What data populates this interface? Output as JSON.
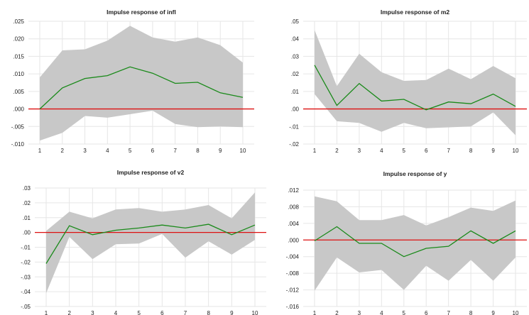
{
  "chart_data": [
    {
      "type": "area",
      "title": "Impulse response of infl",
      "x": [
        1,
        2,
        3,
        4,
        5,
        6,
        7,
        8,
        9,
        10
      ],
      "ylim": [
        -0.01,
        0.025
      ],
      "yticks": [
        -0.01,
        -0.005,
        0.0,
        0.005,
        0.01,
        0.015,
        0.02,
        0.025
      ],
      "ytick_labels": [
        "-.010",
        "-.005",
        ".000",
        ".005",
        ".010",
        ".015",
        ".020",
        ".025"
      ],
      "grid": true,
      "series": [
        {
          "role": "response",
          "values": [
            0.0,
            0.006,
            0.0087,
            0.0095,
            0.012,
            0.0102,
            0.0073,
            0.0076,
            0.0046,
            0.0033
          ]
        },
        {
          "role": "upper",
          "values": [
            0.009,
            0.0167,
            0.017,
            0.0195,
            0.0237,
            0.0204,
            0.0192,
            0.0204,
            0.0182,
            0.0132
          ]
        },
        {
          "role": "lower",
          "values": [
            -0.009,
            -0.0068,
            -0.002,
            -0.0025,
            -0.0015,
            -0.0005,
            -0.0043,
            -0.0052,
            -0.005,
            -0.0052
          ]
        }
      ],
      "colors": {
        "response": "#1a8a1a",
        "band": "#c8c8c8",
        "zero": "#dd1111"
      }
    },
    {
      "type": "area",
      "title": "Impulse response of m2",
      "x": [
        1,
        2,
        3,
        4,
        5,
        6,
        7,
        8,
        9,
        10
      ],
      "ylim": [
        -0.02,
        0.05
      ],
      "yticks": [
        -0.02,
        -0.01,
        0.0,
        0.01,
        0.02,
        0.03,
        0.04,
        0.05
      ],
      "ytick_labels": [
        "-.02",
        "-.01",
        ".00",
        ".01",
        ".02",
        ".03",
        ".04",
        ".05"
      ],
      "grid": true,
      "series": [
        {
          "role": "response",
          "values": [
            0.025,
            0.002,
            0.0145,
            0.0045,
            0.0055,
            -0.0005,
            0.004,
            0.003,
            0.0085,
            0.0015
          ]
        },
        {
          "role": "upper",
          "values": [
            0.045,
            0.013,
            0.0315,
            0.021,
            0.016,
            0.0165,
            0.023,
            0.017,
            0.0245,
            0.0175
          ]
        },
        {
          "role": "lower",
          "values": [
            0.0085,
            -0.007,
            -0.008,
            -0.013,
            -0.008,
            -0.011,
            -0.0105,
            -0.01,
            -0.002,
            -0.015
          ]
        }
      ],
      "colors": {
        "response": "#1a8a1a",
        "band": "#c8c8c8",
        "zero": "#dd1111"
      }
    },
    {
      "type": "area",
      "title": "Impulse response of v2",
      "x": [
        1,
        2,
        3,
        4,
        5,
        6,
        7,
        8,
        9,
        10
      ],
      "ylim": [
        -0.05,
        0.03
      ],
      "yticks": [
        -0.05,
        -0.04,
        -0.03,
        -0.02,
        -0.01,
        0.0,
        0.01,
        0.02,
        0.03
      ],
      "ytick_labels": [
        "-.05",
        "-.04",
        "-.03",
        "-.02",
        "-.01",
        ".00",
        ".01",
        ".02",
        ".03"
      ],
      "grid": true,
      "series": [
        {
          "role": "response",
          "values": [
            -0.021,
            0.0045,
            -0.0015,
            0.0015,
            0.003,
            0.005,
            0.003,
            0.0055,
            -0.0015,
            0.005
          ]
        },
        {
          "role": "upper",
          "values": [
            0.001,
            0.014,
            0.0095,
            0.0155,
            0.0165,
            0.014,
            0.0155,
            0.0185,
            0.0095,
            0.027
          ]
        },
        {
          "role": "lower",
          "values": [
            -0.041,
            -0.003,
            -0.018,
            -0.008,
            -0.0075,
            -0.001,
            -0.017,
            -0.006,
            -0.015,
            -0.005
          ]
        }
      ],
      "colors": {
        "response": "#1a8a1a",
        "band": "#c8c8c8",
        "zero": "#dd1111"
      }
    },
    {
      "type": "area",
      "title": "Impulse response of y",
      "x": [
        1,
        2,
        3,
        4,
        5,
        6,
        7,
        8,
        9,
        10
      ],
      "ylim": [
        -0.016,
        0.012
      ],
      "yticks": [
        -0.016,
        -0.012,
        -0.008,
        -0.004,
        0.0,
        0.004,
        0.008,
        0.012
      ],
      "ytick_labels": [
        "-.016",
        "-.012",
        "-.008",
        "-.004",
        ".000",
        ".004",
        ".008",
        ".012"
      ],
      "grid": true,
      "series": [
        {
          "role": "response",
          "values": [
            -0.0002,
            0.0032,
            -0.0008,
            -0.0008,
            -0.004,
            -0.002,
            -0.0015,
            0.0022,
            -0.0008,
            0.0022
          ]
        },
        {
          "role": "upper",
          "values": [
            0.0105,
            0.0093,
            0.0048,
            0.0048,
            0.006,
            0.0035,
            0.0055,
            0.0078,
            0.007,
            0.0095
          ]
        },
        {
          "role": "lower",
          "values": [
            -0.0122,
            -0.0042,
            -0.0078,
            -0.0072,
            -0.012,
            -0.0062,
            -0.0098,
            -0.0048,
            -0.0098,
            -0.0042
          ]
        }
      ],
      "colors": {
        "response": "#1a8a1a",
        "band": "#c8c8c8",
        "zero": "#dd1111"
      }
    }
  ]
}
